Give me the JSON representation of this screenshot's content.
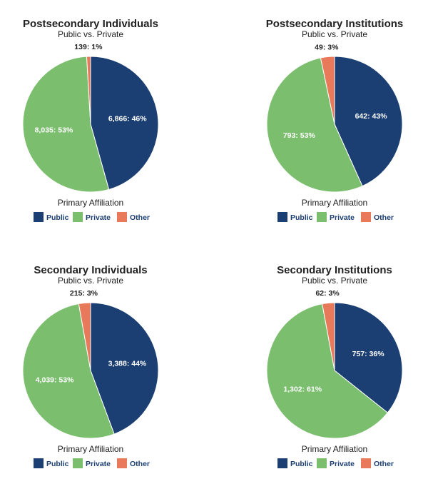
{
  "chart_data": [
    {
      "type": "pie",
      "title": "Postsecondary Individuals",
      "subtitle": "Public vs. Private",
      "legend_title": "Primary Affiliation",
      "categories": [
        "Public",
        "Private",
        "Other"
      ],
      "values": [
        6866,
        8035,
        139
      ],
      "value_labels": [
        "6,866: 46%",
        "8,035: 53%",
        "139: 1%"
      ],
      "colors": [
        "#1b3f73",
        "#7bbf6e",
        "#e8795a"
      ]
    },
    {
      "type": "pie",
      "title": "Postsecondary Institutions",
      "subtitle": "Public vs. Private",
      "legend_title": "Primary Affiliation",
      "categories": [
        "Public",
        "Private",
        "Other"
      ],
      "values": [
        642,
        793,
        49
      ],
      "value_labels": [
        "642: 43%",
        "793: 53%",
        "49: 3%"
      ],
      "colors": [
        "#1b3f73",
        "#7bbf6e",
        "#e8795a"
      ]
    },
    {
      "type": "pie",
      "title": "Secondary Individuals",
      "subtitle": "Public vs. Private",
      "legend_title": "Primary Affiliation",
      "categories": [
        "Public",
        "Private",
        "Other"
      ],
      "values": [
        3388,
        4039,
        215
      ],
      "value_labels": [
        "3,388: 44%",
        "4,039: 53%",
        "215: 3%"
      ],
      "colors": [
        "#1b3f73",
        "#7bbf6e",
        "#e8795a"
      ]
    },
    {
      "type": "pie",
      "title": "Secondary Institutions",
      "subtitle": "Public vs. Private",
      "legend_title": "Primary Affiliation",
      "categories": [
        "Public",
        "Private",
        "Other"
      ],
      "values": [
        757,
        1302,
        62
      ],
      "value_labels": [
        "757: 36%",
        "1,302: 61%",
        "62: 3%"
      ],
      "colors": [
        "#1b3f73",
        "#7bbf6e",
        "#e8795a"
      ]
    }
  ]
}
